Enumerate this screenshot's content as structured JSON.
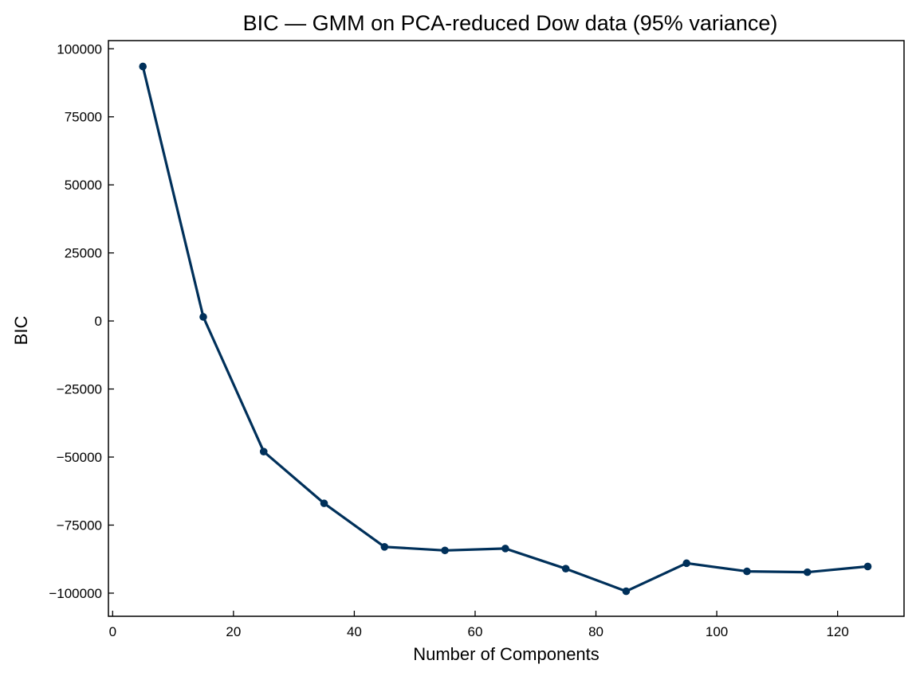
{
  "chart_data": {
    "type": "line",
    "title": "BIC — GMM on PCA-reduced Dow data (95% variance)",
    "xlabel": "Number of Components",
    "ylabel": "BIC",
    "x": [
      5,
      15,
      25,
      35,
      45,
      55,
      65,
      75,
      85,
      95,
      105,
      115,
      125
    ],
    "series": [
      {
        "values": [
          93500,
          1500,
          -48000,
          -67000,
          -83000,
          -84300,
          -83600,
          -91000,
          -99300,
          -89000,
          -92000,
          -92300,
          -90200
        ]
      }
    ],
    "xlim": [
      -0.7,
      131
    ],
    "ylim": [
      -108500,
      103000
    ],
    "xticks": [
      0,
      20,
      40,
      60,
      80,
      100,
      120
    ],
    "xtick_labels": [
      "0",
      "20",
      "40",
      "60",
      "80",
      "100",
      "120"
    ],
    "yticks": [
      100000,
      75000,
      50000,
      25000,
      0,
      -25000,
      -50000,
      -75000,
      -100000
    ],
    "ytick_labels": [
      "100000",
      "75000",
      "50000",
      "25000",
      "0",
      "−25000",
      "−50000",
      "−75000",
      "−100000"
    ],
    "grid": false,
    "line_color": "#00305a"
  }
}
